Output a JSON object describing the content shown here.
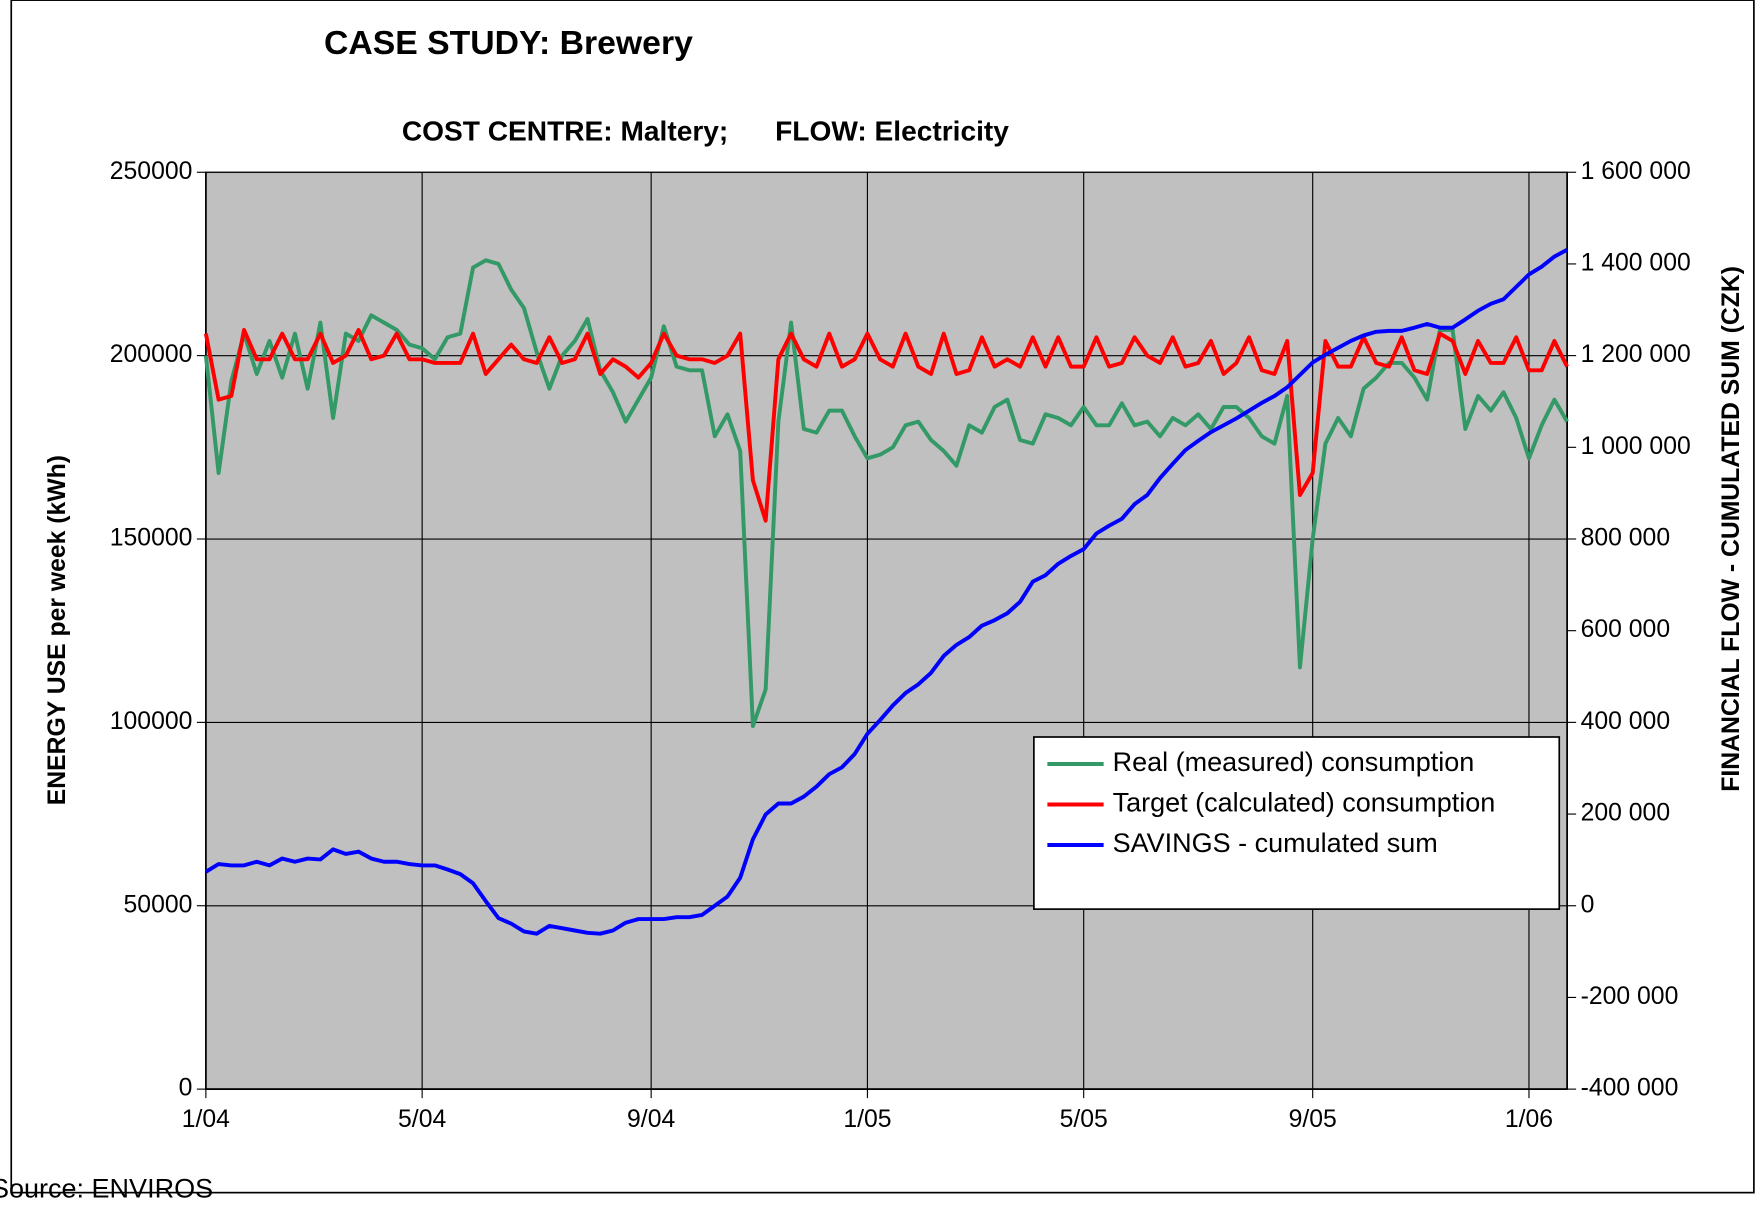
{
  "chart_data": {
    "type": "line",
    "title": "CASE STUDY: Brewery",
    "subtitle": "COST CENTRE: Maltery;      FLOW: Electricity",
    "ylabel": "ENERGY USE  per week (kWh)",
    "y2label": "FINANCIAL FLOW - CUMULATED SUM  (CZK)",
    "source": "Source: ENVIROS",
    "categories": [
      "1/04",
      null,
      null,
      null,
      null,
      null,
      null,
      null,
      null,
      null,
      null,
      null,
      null,
      null,
      null,
      null,
      null,
      "5/04",
      null,
      null,
      null,
      null,
      null,
      null,
      null,
      null,
      null,
      null,
      null,
      null,
      null,
      null,
      null,
      null,
      null,
      "9/04",
      null,
      null,
      null,
      null,
      null,
      null,
      null,
      null,
      null,
      null,
      null,
      null,
      null,
      null,
      null,
      null,
      "1/05",
      null,
      null,
      null,
      null,
      null,
      null,
      null,
      null,
      null,
      null,
      null,
      null,
      null,
      null,
      null,
      null,
      "5/05",
      null,
      null,
      null,
      null,
      null,
      null,
      null,
      null,
      null,
      null,
      null,
      null,
      null,
      null,
      null,
      null,
      null,
      "9/05",
      null,
      null,
      null,
      null,
      null,
      null,
      null,
      null,
      null,
      null,
      null,
      null,
      null,
      null,
      null,
      null,
      "1/06",
      null,
      null,
      null
    ],
    "series": [
      {
        "name": "Real (measured) consumption",
        "color": "#339966",
        "values": [
          200000,
          168000,
          193000,
          206000,
          195000,
          204000,
          194000,
          206000,
          191000,
          209000,
          183000,
          206000,
          204000,
          211000,
          209000,
          207000,
          203000,
          202000,
          199000,
          205000,
          206000,
          224000,
          226000,
          225000,
          218000,
          213000,
          201000,
          191000,
          200000,
          204000,
          210000,
          196000,
          190000,
          182000,
          188000,
          194000,
          208000,
          197000,
          196000,
          196000,
          178000,
          184000,
          174000,
          99000,
          109000,
          182000,
          209000,
          180000,
          179000,
          185000,
          185000,
          178000,
          172000,
          173000,
          175000,
          181000,
          182000,
          177000,
          174000,
          170000,
          181000,
          179000,
          186000,
          188000,
          177000,
          176000,
          184000,
          183000,
          181000,
          186000,
          181000,
          181000,
          187000,
          181000,
          182000,
          178000,
          183000,
          181000,
          184000,
          180000,
          186000,
          186000,
          183000,
          178000,
          176000,
          189000,
          115000,
          150000,
          176000,
          183000,
          178000,
          191000,
          194000,
          198000,
          198000,
          194000,
          188000,
          207000,
          207000,
          180000,
          189000,
          185000,
          190000,
          183000,
          172000,
          181000,
          188000,
          182000
        ]
      },
      {
        "name": "Target (calculated) consumption",
        "color": "#ff0000",
        "values": [
          206000,
          188000,
          189000,
          207000,
          199000,
          199000,
          206000,
          199000,
          199000,
          206000,
          198000,
          200000,
          207000,
          199000,
          200000,
          206000,
          199000,
          199000,
          198000,
          198000,
          198000,
          206000,
          195000,
          199000,
          203000,
          199000,
          198000,
          205000,
          198000,
          199000,
          206000,
          195000,
          199000,
          197000,
          194000,
          198000,
          206000,
          200000,
          199000,
          199000,
          198000,
          200000,
          206000,
          166000,
          155000,
          199000,
          206000,
          199000,
          197000,
          206000,
          197000,
          199000,
          206000,
          199000,
          197000,
          206000,
          197000,
          195000,
          206000,
          195000,
          196000,
          205000,
          197000,
          199000,
          197000,
          205000,
          197000,
          205000,
          197000,
          197000,
          205000,
          197000,
          198000,
          205000,
          200000,
          198000,
          205000,
          197000,
          198000,
          204000,
          195000,
          198000,
          205000,
          196000,
          195000,
          204000,
          162000,
          168000,
          204000,
          197000,
          197000,
          205000,
          198000,
          197000,
          205000,
          196000,
          195000,
          206000,
          204000,
          195000,
          204000,
          198000,
          198000,
          205000,
          196000,
          196000,
          204000,
          197000
        ]
      },
      {
        "name": "SAVINGS - cumulated sum",
        "color": "#0000ff",
        "axis": "y2",
        "values": [
          74000,
          91000,
          88000,
          88000,
          96000,
          88000,
          103000,
          96000,
          103000,
          101000,
          123000,
          113000,
          118000,
          103000,
          96000,
          96000,
          91000,
          88000,
          88000,
          79000,
          69000,
          49000,
          10000,
          -27000,
          -39000,
          -56000,
          -61000,
          -44000,
          -49000,
          -54000,
          -59000,
          -61000,
          -54000,
          -37000,
          -29000,
          -29000,
          -29000,
          -25000,
          -25000,
          -20000,
          0,
          20000,
          61000,
          145000,
          199000,
          223000,
          223000,
          238000,
          260000,
          287000,
          302000,
          331000,
          375000,
          405000,
          437000,
          464000,
          483000,
          508000,
          545000,
          569000,
          586000,
          611000,
          623000,
          638000,
          663000,
          707000,
          721000,
          746000,
          763000,
          778000,
          812000,
          829000,
          844000,
          876000,
          896000,
          933000,
          964000,
          994000,
          1014000,
          1033000,
          1048000,
          1063000,
          1080000,
          1097000,
          1112000,
          1131000,
          1158000,
          1185000,
          1202000,
          1217000,
          1232000,
          1244000,
          1252000,
          1254000,
          1254000,
          1261000,
          1269000,
          1261000,
          1261000,
          1279000,
          1298000,
          1313000,
          1323000,
          1350000,
          1377000,
          1394000,
          1416000,
          1431000
        ]
      }
    ],
    "ylim": [
      0,
      250000
    ],
    "yticks": [
      0,
      50000,
      100000,
      150000,
      200000,
      250000
    ],
    "y2lim": [
      -400000,
      1600000
    ],
    "y2ticks": [
      {
        "value": -400000,
        "label": "-400 000"
      },
      {
        "value": -200000,
        "label": "-200 000"
      },
      0,
      {
        "value": 200000,
        "label": "200 000"
      },
      {
        "value": 400000,
        "label": "400 000"
      },
      {
        "value": 600000,
        "label": "600 000"
      },
      {
        "value": 800000,
        "label": "800 000"
      },
      {
        "value": 1000000,
        "label": "1 000 000"
      },
      {
        "value": 1200000,
        "label": "1 200 000"
      },
      {
        "value": 1400000,
        "label": "1 400 000"
      },
      {
        "value": 1600000,
        "label": "1 600 000"
      }
    ],
    "grid": true,
    "legend": "lower right",
    "plot_color": "#c0c0c0"
  }
}
